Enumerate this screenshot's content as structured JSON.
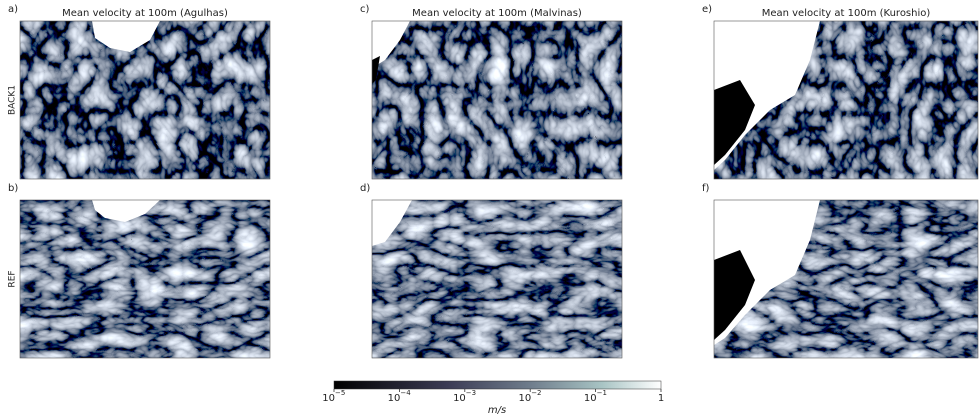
{
  "columns": [
    {
      "title": "Mean velocity at 100m (Agulhas)",
      "panels": [
        "a)",
        "b)"
      ]
    },
    {
      "title": "Mean velocity at 100m (Malvinas)",
      "panels": [
        "c)",
        "d)"
      ]
    },
    {
      "title": "Mean velocity at 100m (Kuroshio)",
      "panels": [
        "e)",
        "f)"
      ]
    }
  ],
  "rows": [
    "BACK1",
    "REF"
  ],
  "colorbar": {
    "scale": "log",
    "lim": [
      1e-05,
      1
    ],
    "ticks": [
      {
        "value": 1e-05,
        "label": "10",
        "exponent": "−5"
      },
      {
        "value": 0.0001,
        "label": "10",
        "exponent": "−4"
      },
      {
        "value": 0.001,
        "label": "10",
        "exponent": "−3"
      },
      {
        "value": 0.01,
        "label": "10",
        "exponent": "−2"
      },
      {
        "value": 0.1,
        "label": "10",
        "exponent": "−1"
      },
      1
    ],
    "label": "m/s"
  }
}
